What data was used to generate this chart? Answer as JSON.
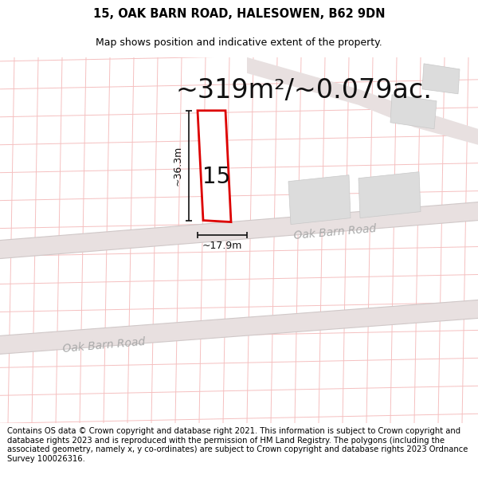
{
  "title_line1": "15, OAK BARN ROAD, HALESOWEN, B62 9DN",
  "title_line2": "Map shows position and indicative extent of the property.",
  "area_text": "~319m²/~0.079ac.",
  "property_number": "15",
  "dim_width": "~17.9m",
  "dim_height": "~36.3m",
  "road_label_upper": "Oak Barn Road",
  "road_label_lower": "Oak Barn Road",
  "footer_text": "Contains OS data © Crown copyright and database right 2021. This information is subject to Crown copyright and database rights 2023 and is reproduced with the permission of HM Land Registry. The polygons (including the associated geometry, namely x, y co-ordinates) are subject to Crown copyright and database rights 2023 Ordnance Survey 100026316.",
  "bg_color": "#ffffff",
  "map_bg": "#ffffff",
  "property_fill": "#ffffff",
  "property_edge": "#dd0000",
  "line_color": "#f5c0c0",
  "road_fill": "#e8e0e0",
  "bld_fill": "#dcdcdc",
  "title_fontsize": 10.5,
  "area_fontsize": 24,
  "footer_fontsize": 7.2
}
